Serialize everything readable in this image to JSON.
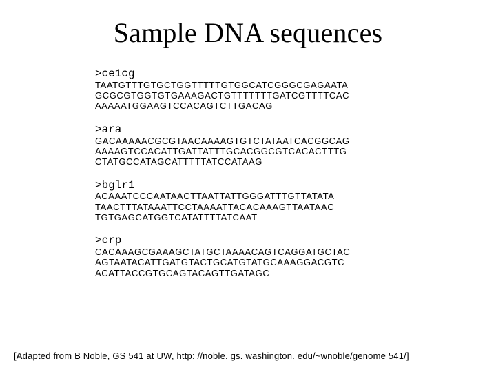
{
  "title": "Sample DNA sequences",
  "sequences": [
    {
      "header": ">ce1cg",
      "lines": "TAATGTTTGTGCTGGTTTTTGTGGCATCGGGCGAGAATA\nGCGCGTGGTGTGAAAGACTGTTTTTTTGATCGTTTTCAC\nAAAAATGGAAGTCCACAGTCTTGACAG"
    },
    {
      "header": ">ara",
      "lines": "GACAAAAACGCGTAACAAAAGTGTCTATAATCACGGCAG\nAAAAGTCCACATTGATTATTTGCACGGCGTCACACTTTG\nCTATGCCATAGCATTTTTATCCATAAG"
    },
    {
      "header": ">bglr1",
      "lines": "ACAAATCCCAATAACTTAATTATTGGGATTTGTTATATA\nTAACTTTATAAATTCCTAAAATTACACAAAGTTAATAAC\nTGTGAGCATGGTCATATTTTATCAAT"
    },
    {
      "header": ">crp",
      "lines": "CACAAAGCGAAAGCTATGCTAAAACAGTCAGGATGCTAC\nAGTAATACATTGATGTACTGCATGTATGCAAAGGACGTC\nACATTACCGTGCAGTACAGTTGATAGC"
    }
  ],
  "attribution": "[Adapted from B Noble, GS 541 at UW, http: //noble. gs. washington. edu/~wnoble/genome 541/]"
}
